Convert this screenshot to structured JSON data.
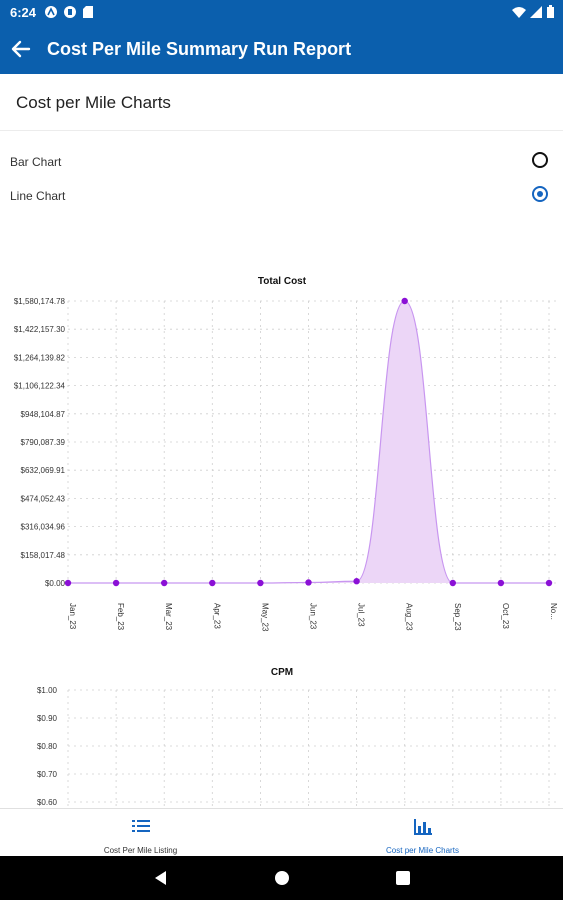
{
  "status_bar": {
    "time": "6:24"
  },
  "app_bar": {
    "title": "Cost Per Mile Summary Run Report"
  },
  "page": {
    "heading": "Cost per Mile Charts"
  },
  "chart_options": [
    {
      "label": "Bar Chart",
      "selected": false
    },
    {
      "label": "Line Chart",
      "selected": true
    }
  ],
  "chart_data": [
    {
      "type": "area",
      "title": "Total Cost",
      "categories": [
        "Jan_23",
        "Feb_23",
        "Mar_23",
        "Apr_23",
        "May_23",
        "Jun_23",
        "Jul_23",
        "Aug_23",
        "Sep_23",
        "Oct_23",
        "No..."
      ],
      "values": [
        0,
        0,
        0,
        0,
        0,
        3000,
        10000,
        1580174.78,
        0,
        0,
        0
      ],
      "y_tick_labels": [
        "$1,580,174.78",
        "$1,422,157.30",
        "$1,264,139.82",
        "$1,106,122.34",
        "$948,104.87",
        "$790,087.39",
        "$632,069.91",
        "$474,052.43",
        "$316,034.96",
        "$158,017.48",
        "$0.00"
      ],
      "ylim": [
        0,
        1580174.78
      ],
      "line_color": "#c896f0",
      "fill_color": "#ecd6f7",
      "marker_color": "#8b10d6",
      "grid": true
    },
    {
      "type": "line",
      "title": "CPM",
      "y_tick_labels": [
        "$1.00",
        "$0.90",
        "$0.80",
        "$0.70",
        "$0.60"
      ],
      "grid": true
    }
  ],
  "bottom_nav": [
    {
      "label": "Cost Per Mile Listing",
      "icon": "list-icon",
      "active": false
    },
    {
      "label": "Cost per Mile Charts",
      "icon": "bar-chart-icon",
      "active": true
    }
  ],
  "colors": {
    "primary": "#0b5fad",
    "accent": "#1565c0"
  }
}
